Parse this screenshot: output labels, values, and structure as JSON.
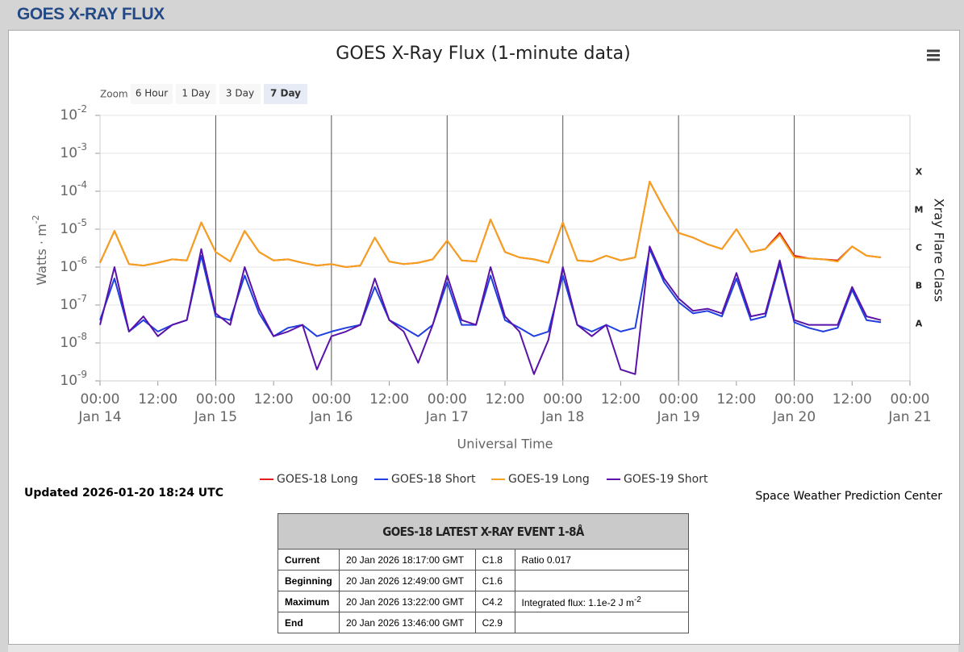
{
  "header": {
    "title": "GOES X-RAY FLUX"
  },
  "zoom": {
    "label": "Zoom",
    "buttons": [
      "6 Hour",
      "1 Day",
      "3 Day",
      "7 Day"
    ],
    "selected": 3
  },
  "updated": "Updated 2026-01-20 18:24 UTC",
  "credit": "Space Weather Prediction Center",
  "chart_data": {
    "type": "line",
    "title": "GOES X-Ray Flux (1-minute data)",
    "xlabel": "Universal Time",
    "ylabel": "Watts · m",
    "ylabel_exponent": "-2",
    "y2label": "Xray Flare Class",
    "yscale": "log",
    "grid": true,
    "ylim": [
      1e-09,
      0.01
    ],
    "yticks": [
      {
        "value": 1e-09,
        "label": "10",
        "exponent": "-9"
      },
      {
        "value": 1e-08,
        "label": "10",
        "exponent": "-8"
      },
      {
        "value": 1e-07,
        "label": "10",
        "exponent": "-7"
      },
      {
        "value": 1e-06,
        "label": "10",
        "exponent": "-6"
      },
      {
        "value": 1e-05,
        "label": "10",
        "exponent": "-5"
      },
      {
        "value": 0.0001,
        "label": "10",
        "exponent": "-4"
      },
      {
        "value": 0.001,
        "label": "10",
        "exponent": "-3"
      },
      {
        "value": 0.01,
        "label": "10",
        "exponent": "-2"
      }
    ],
    "flare_classes": [
      {
        "label": "A",
        "range": [
          1e-08,
          1e-07
        ]
      },
      {
        "label": "B",
        "range": [
          1e-07,
          1e-06
        ]
      },
      {
        "label": "C",
        "range": [
          1e-06,
          1e-05
        ]
      },
      {
        "label": "M",
        "range": [
          1e-05,
          0.0001
        ]
      },
      {
        "label": "X",
        "range": [
          0.0001,
          0.001
        ]
      }
    ],
    "xlim": [
      "Jan 14 00:00",
      "Jan 21 00:00"
    ],
    "xticks": [
      {
        "value": "Jan 14 00:00",
        "label": "00:00",
        "sublabel": "Jan 14"
      },
      {
        "value": "Jan 14 12:00",
        "label": "12:00"
      },
      {
        "value": "Jan 15 00:00",
        "label": "00:00",
        "sublabel": "Jan 15"
      },
      {
        "value": "Jan 15 12:00",
        "label": "12:00"
      },
      {
        "value": "Jan 16 00:00",
        "label": "00:00",
        "sublabel": "Jan 16"
      },
      {
        "value": "Jan 16 12:00",
        "label": "12:00"
      },
      {
        "value": "Jan 17 00:00",
        "label": "00:00",
        "sublabel": "Jan 17"
      },
      {
        "value": "Jan 17 12:00",
        "label": "12:00"
      },
      {
        "value": "Jan 18 00:00",
        "label": "00:00",
        "sublabel": "Jan 18"
      },
      {
        "value": "Jan 18 12:00",
        "label": "12:00"
      },
      {
        "value": "Jan 19 00:00",
        "label": "00:00",
        "sublabel": "Jan 19"
      },
      {
        "value": "Jan 19 12:00",
        "label": "12:00"
      },
      {
        "value": "Jan 20 00:00",
        "label": "00:00",
        "sublabel": "Jan 20"
      },
      {
        "value": "Jan 20 12:00",
        "label": "12:00"
      },
      {
        "value": "Jan 21 00:00",
        "label": "00:00",
        "sublabel": "Jan 21"
      }
    ],
    "x": [
      "Jan 14 00:00",
      "Jan 14 03:00",
      "Jan 14 06:00",
      "Jan 14 09:00",
      "Jan 14 12:00",
      "Jan 14 15:00",
      "Jan 14 18:00",
      "Jan 14 21:00",
      "Jan 15 00:00",
      "Jan 15 03:00",
      "Jan 15 06:00",
      "Jan 15 09:00",
      "Jan 15 12:00",
      "Jan 15 15:00",
      "Jan 15 18:00",
      "Jan 15 21:00",
      "Jan 16 00:00",
      "Jan 16 03:00",
      "Jan 16 06:00",
      "Jan 16 09:00",
      "Jan 16 12:00",
      "Jan 16 15:00",
      "Jan 16 18:00",
      "Jan 16 21:00",
      "Jan 17 00:00",
      "Jan 17 03:00",
      "Jan 17 06:00",
      "Jan 17 09:00",
      "Jan 17 12:00",
      "Jan 17 15:00",
      "Jan 17 18:00",
      "Jan 17 21:00",
      "Jan 18 00:00",
      "Jan 18 03:00",
      "Jan 18 06:00",
      "Jan 18 09:00",
      "Jan 18 12:00",
      "Jan 18 15:00",
      "Jan 18 18:00",
      "Jan 18 21:00",
      "Jan 19 00:00",
      "Jan 19 03:00",
      "Jan 19 06:00",
      "Jan 19 09:00",
      "Jan 19 12:00",
      "Jan 19 15:00",
      "Jan 19 18:00",
      "Jan 19 21:00",
      "Jan 20 00:00",
      "Jan 20 03:00",
      "Jan 20 06:00",
      "Jan 20 09:00",
      "Jan 20 12:00",
      "Jan 20 15:00",
      "Jan 20 18:00"
    ],
    "series": [
      {
        "name": "GOES-18 Long",
        "color": "#e0201a",
        "values": [
          1.3e-06,
          9e-06,
          1.2e-06,
          1.1e-06,
          1.3e-06,
          1.6e-06,
          1.5e-06,
          1.5e-05,
          2.5e-06,
          1.4e-06,
          9e-06,
          2.5e-06,
          1.5e-06,
          1.6e-06,
          1.3e-06,
          1.1e-06,
          1.2e-06,
          1e-06,
          1.1e-06,
          6e-06,
          1.4e-06,
          1.2e-06,
          1.3e-06,
          1.6e-06,
          5e-06,
          1.5e-06,
          1.4e-06,
          1.8e-05,
          2.5e-06,
          1.8e-06,
          1.6e-06,
          1.3e-06,
          1.5e-05,
          1.5e-06,
          1.4e-06,
          2e-06,
          1.5e-06,
          1.8e-06,
          0.00018,
          3.5e-05,
          8e-06,
          6e-06,
          4e-06,
          3e-06,
          1e-05,
          2.5e-06,
          3e-06,
          8e-06,
          2e-06,
          1.7e-06,
          1.6e-06,
          1.5e-06,
          3.5e-06,
          2e-06,
          1.8e-06
        ]
      },
      {
        "name": "GOES-18 Short",
        "color": "#1f3fe0",
        "values": [
          4e-08,
          5e-07,
          2e-08,
          4e-08,
          2e-08,
          3e-08,
          4e-08,
          2e-06,
          5e-08,
          4e-08,
          6e-07,
          6e-08,
          1.5e-08,
          2.5e-08,
          3e-08,
          1.5e-08,
          2e-08,
          2.5e-08,
          3e-08,
          3e-07,
          4e-08,
          2.5e-08,
          1.5e-08,
          3e-08,
          4e-07,
          3e-08,
          3e-08,
          6e-07,
          4e-08,
          2.5e-08,
          1.5e-08,
          2e-08,
          6e-07,
          3e-08,
          2e-08,
          3e-08,
          2e-08,
          2.5e-08,
          3e-06,
          4e-07,
          1.2e-07,
          6e-08,
          7e-08,
          5e-08,
          5e-07,
          4e-08,
          5e-08,
          1.2e-06,
          3.5e-08,
          2.5e-08,
          2e-08,
          2.5e-08,
          2.5e-07,
          4e-08,
          3.5e-08
        ]
      },
      {
        "name": "GOES-19 Long",
        "color": "#f5a11c",
        "values": [
          1.3e-06,
          9e-06,
          1.2e-06,
          1.1e-06,
          1.3e-06,
          1.6e-06,
          1.5e-06,
          1.5e-05,
          2.5e-06,
          1.4e-06,
          9e-06,
          2.5e-06,
          1.5e-06,
          1.6e-06,
          1.3e-06,
          1.1e-06,
          1.2e-06,
          1e-06,
          1.1e-06,
          6e-06,
          1.4e-06,
          1.2e-06,
          1.3e-06,
          1.6e-06,
          5e-06,
          1.5e-06,
          1.4e-06,
          1.8e-05,
          2.5e-06,
          1.8e-06,
          1.6e-06,
          1.3e-06,
          1.5e-05,
          1.5e-06,
          1.4e-06,
          2e-06,
          1.5e-06,
          1.8e-06,
          0.00018,
          3.5e-05,
          8e-06,
          6e-06,
          4e-06,
          3e-06,
          1e-05,
          2.5e-06,
          3e-06,
          7e-06,
          1.8e-06,
          1.7e-06,
          1.6e-06,
          1.4e-06,
          3.5e-06,
          2e-06,
          1.8e-06
        ]
      },
      {
        "name": "GOES-19 Short",
        "color": "#5a12a8",
        "values": [
          3e-08,
          1e-06,
          2e-08,
          5e-08,
          1.5e-08,
          3e-08,
          4e-08,
          3e-06,
          6e-08,
          3e-08,
          1e-06,
          8e-08,
          1.5e-08,
          2e-08,
          3e-08,
          2e-09,
          1.5e-08,
          2e-08,
          3e-08,
          5e-07,
          4e-08,
          2e-08,
          3e-09,
          3e-08,
          6e-07,
          4e-08,
          3e-08,
          1e-06,
          5e-08,
          2e-08,
          1.5e-09,
          1.2e-08,
          1e-06,
          3e-08,
          1.5e-08,
          3e-08,
          2e-09,
          1.5e-09,
          3.5e-06,
          5e-07,
          1.5e-07,
          7e-08,
          8e-08,
          6e-08,
          7e-07,
          5e-08,
          6e-08,
          1.5e-06,
          4e-08,
          3e-08,
          3e-08,
          3e-08,
          3e-07,
          5e-08,
          4e-08
        ]
      }
    ]
  },
  "table": {
    "title": "GOES-18 LATEST X-RAY EVENT 1-8Å",
    "rows": [
      [
        "Current",
        "20 Jan 2026 18:17:00 GMT",
        "C1.8",
        "Ratio 0.017"
      ],
      [
        "Beginning",
        "20 Jan 2026 12:49:00 GMT",
        "C1.6",
        ""
      ],
      [
        "Maximum",
        "20 Jan 2026 13:22:00 GMT",
        "C4.2",
        {
          "text": "Integrated flux: 1.1e-2 J m",
          "sup": "-2"
        }
      ],
      [
        "End",
        "20 Jan 2026 13:46:00 GMT",
        "C2.9",
        ""
      ]
    ]
  }
}
